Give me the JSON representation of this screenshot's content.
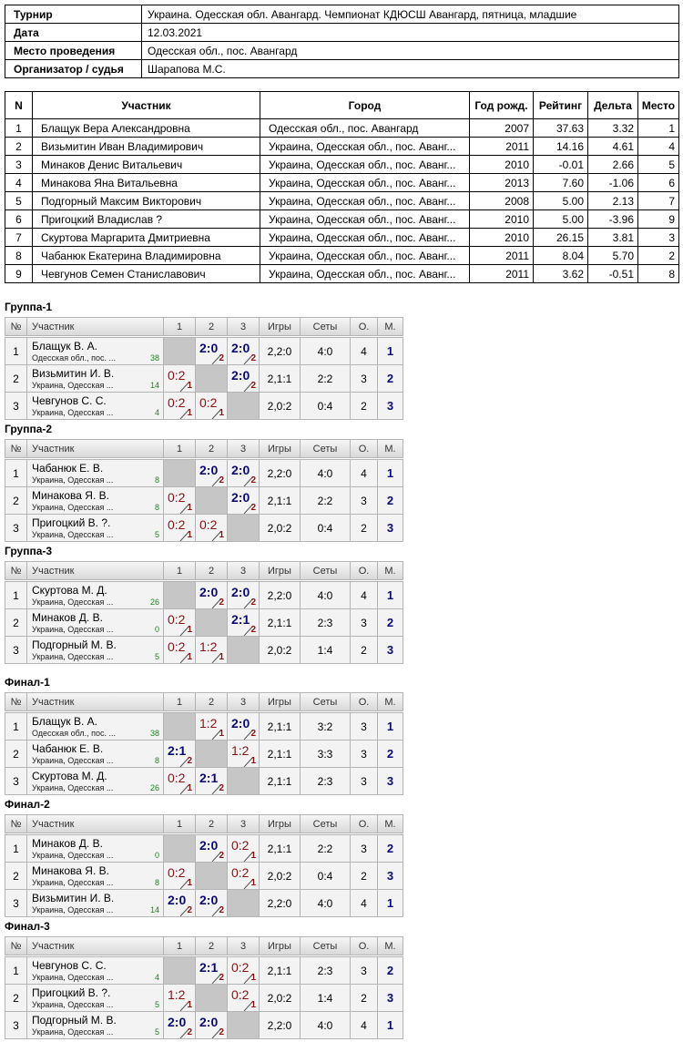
{
  "info": {
    "rows": [
      [
        "Турнир",
        "Украина. Одесская обл. Авангард. Чемпионат КДЮСШ Авангард, пятница, младшие"
      ],
      [
        "Дата",
        "12.03.2021"
      ],
      [
        "Место проведения",
        "Одесская обл., пос. Авангард"
      ],
      [
        "Организатор / судья",
        "Шарапова М.С."
      ]
    ]
  },
  "participants": {
    "header": [
      "N",
      "Участник",
      "Город",
      "Год рожд.",
      "Рейтинг",
      "Дельта",
      "Место"
    ],
    "rows": [
      [
        "1",
        "Блащук Вера Александровна",
        "Одесская обл., пос. Авангард",
        "2007",
        "37.63",
        "3.32",
        "1"
      ],
      [
        "2",
        "Визьмитин Иван Владимирович",
        "Украина, Одесская обл., пос. Аванг...",
        "2011",
        "14.16",
        "4.61",
        "4"
      ],
      [
        "3",
        "Минаков Денис Витальевич",
        "Украина, Одесская обл., пос. Аванг...",
        "2010",
        "-0.01",
        "2.66",
        "5"
      ],
      [
        "4",
        "Минакова Яна Витальевна",
        "Украина, Одесская обл., пос. Аванг...",
        "2013",
        "7.60",
        "-1.06",
        "6"
      ],
      [
        "5",
        "Подгорный Максим Викторович",
        "Украина, Одесская обл., пос. Аванг...",
        "2008",
        "5.00",
        "2.13",
        "7"
      ],
      [
        "6",
        "Пригоцкий Владислав ?",
        "Украина, Одесская обл., пос. Аванг...",
        "2010",
        "5.00",
        "-3.96",
        "9"
      ],
      [
        "7",
        "Скуртова Маргарита Дмитриевна",
        "Украина, Одесская обл., пос. Аванг...",
        "2010",
        "26.15",
        "3.81",
        "3"
      ],
      [
        "8",
        "Чабанюк Екатерина Владимировна",
        "Украина, Одесская обл., пос. Аванг...",
        "2011",
        "8.04",
        "5.70",
        "2"
      ],
      [
        "9",
        "Чевгунов Семен Станиславович",
        "Украина, Одесская обл., пос. Аванг...",
        "2011",
        "3.62",
        "-0.51",
        "8"
      ]
    ]
  },
  "group_header": [
    "№",
    "Участник",
    "1",
    "2",
    "3",
    "Игры",
    "Сеты",
    "О.",
    "М."
  ],
  "groups": [
    {
      "title": "Группа-1",
      "rows": [
        {
          "n": "1",
          "name": "Блащук В. А.",
          "city": "Одесская обл., пос. ...",
          "rating": "38",
          "results": [
            null,
            {
              "score": "2:0",
              "points": "2"
            },
            {
              "score": "2:0",
              "points": "2"
            }
          ],
          "games": "2,2:0",
          "sets": "4:0",
          "points": "4",
          "place": "1"
        },
        {
          "n": "2",
          "name": "Визьмитин И. В.",
          "city": "Украина, Одесская ...",
          "rating": "14",
          "results": [
            {
              "score": "0:2",
              "points": "1"
            },
            null,
            {
              "score": "2:0",
              "points": "2"
            }
          ],
          "games": "2,1:1",
          "sets": "2:2",
          "points": "3",
          "place": "2"
        },
        {
          "n": "3",
          "name": "Чевгунов С. С.",
          "city": "Украина, Одесская ...",
          "rating": "4",
          "results": [
            {
              "score": "0:2",
              "points": "1"
            },
            {
              "score": "0:2",
              "points": "1"
            },
            null
          ],
          "games": "2,0:2",
          "sets": "0:4",
          "points": "2",
          "place": "3"
        }
      ]
    },
    {
      "title": "Группа-2",
      "rows": [
        {
          "n": "1",
          "name": "Чабанюк Е. В.",
          "city": "Украина, Одесская ...",
          "rating": "8",
          "results": [
            null,
            {
              "score": "2:0",
              "points": "2"
            },
            {
              "score": "2:0",
              "points": "2"
            }
          ],
          "games": "2,2:0",
          "sets": "4:0",
          "points": "4",
          "place": "1"
        },
        {
          "n": "2",
          "name": "Минакова Я. В.",
          "city": "Украина, Одесская ...",
          "rating": "8",
          "results": [
            {
              "score": "0:2",
              "points": "1"
            },
            null,
            {
              "score": "2:0",
              "points": "2"
            }
          ],
          "games": "2,1:1",
          "sets": "2:2",
          "points": "3",
          "place": "2"
        },
        {
          "n": "3",
          "name": "Пригоцкий В. ?.",
          "city": "Украина, Одесская ...",
          "rating": "5",
          "results": [
            {
              "score": "0:2",
              "points": "1"
            },
            {
              "score": "0:2",
              "points": "1"
            },
            null
          ],
          "games": "2,0:2",
          "sets": "0:4",
          "points": "2",
          "place": "3"
        }
      ]
    },
    {
      "title": "Группа-3",
      "rows": [
        {
          "n": "1",
          "name": "Скуртова М. Д.",
          "city": "Украина, Одесская ...",
          "rating": "26",
          "results": [
            null,
            {
              "score": "2:0",
              "points": "2"
            },
            {
              "score": "2:0",
              "points": "2"
            }
          ],
          "games": "2,2:0",
          "sets": "4:0",
          "points": "4",
          "place": "1"
        },
        {
          "n": "2",
          "name": "Минаков Д. В.",
          "city": "Украина, Одесская ...",
          "rating": "0",
          "results": [
            {
              "score": "0:2",
              "points": "1"
            },
            null,
            {
              "score": "2:1",
              "points": "2"
            }
          ],
          "games": "2,1:1",
          "sets": "2:3",
          "points": "3",
          "place": "2"
        },
        {
          "n": "3",
          "name": "Подгорный М. В.",
          "city": "Украина, Одесская ...",
          "rating": "5",
          "results": [
            {
              "score": "0:2",
              "points": "1"
            },
            {
              "score": "1:2",
              "points": "1"
            },
            null
          ],
          "games": "2,0:2",
          "sets": "1:4",
          "points": "2",
          "place": "3"
        }
      ]
    },
    {
      "title": "Финал-1",
      "rows": [
        {
          "n": "1",
          "name": "Блащук В. А.",
          "city": "Одесская обл., пос. ...",
          "rating": "38",
          "results": [
            null,
            {
              "score": "1:2",
              "points": "1"
            },
            {
              "score": "2:0",
              "points": "2"
            }
          ],
          "games": "2,1:1",
          "sets": "3:2",
          "points": "3",
          "place": "1"
        },
        {
          "n": "2",
          "name": "Чабанюк Е. В.",
          "city": "Украина, Одесская ...",
          "rating": "8",
          "results": [
            {
              "score": "2:1",
              "points": "2"
            },
            null,
            {
              "score": "1:2",
              "points": "1"
            }
          ],
          "games": "2,1:1",
          "sets": "3:3",
          "points": "3",
          "place": "2"
        },
        {
          "n": "3",
          "name": "Скуртова М. Д.",
          "city": "Украина, Одесская ...",
          "rating": "26",
          "results": [
            {
              "score": "0:2",
              "points": "1"
            },
            {
              "score": "2:1",
              "points": "2"
            },
            null
          ],
          "games": "2,1:1",
          "sets": "2:3",
          "points": "3",
          "place": "3"
        }
      ]
    },
    {
      "title": "Финал-2",
      "rows": [
        {
          "n": "1",
          "name": "Минаков Д. В.",
          "city": "Украина, Одесская ...",
          "rating": "0",
          "results": [
            null,
            {
              "score": "2:0",
              "points": "2"
            },
            {
              "score": "0:2",
              "points": "1"
            }
          ],
          "games": "2,1:1",
          "sets": "2:2",
          "points": "3",
          "place": "2"
        },
        {
          "n": "2",
          "name": "Минакова Я. В.",
          "city": "Украина, Одесская ...",
          "rating": "8",
          "results": [
            {
              "score": "0:2",
              "points": "1"
            },
            null,
            {
              "score": "0:2",
              "points": "1"
            }
          ],
          "games": "2,0:2",
          "sets": "0:4",
          "points": "2",
          "place": "3"
        },
        {
          "n": "3",
          "name": "Визьмитин И. В.",
          "city": "Украина, Одесская ...",
          "rating": "14",
          "results": [
            {
              "score": "2:0",
              "points": "2"
            },
            {
              "score": "2:0",
              "points": "2"
            },
            null
          ],
          "games": "2,2:0",
          "sets": "4:0",
          "points": "4",
          "place": "1"
        }
      ]
    },
    {
      "title": "Финал-3",
      "rows": [
        {
          "n": "1",
          "name": "Чевгунов С. С.",
          "city": "Украина, Одесская ...",
          "rating": "4",
          "results": [
            null,
            {
              "score": "2:1",
              "points": "2"
            },
            {
              "score": "0:2",
              "points": "1"
            }
          ],
          "games": "2,1:1",
          "sets": "2:3",
          "points": "3",
          "place": "2"
        },
        {
          "n": "2",
          "name": "Пригоцкий В. ?.",
          "city": "Украина, Одесская ...",
          "rating": "5",
          "results": [
            {
              "score": "1:2",
              "points": "1"
            },
            null,
            {
              "score": "0:2",
              "points": "1"
            }
          ],
          "games": "2,0:2",
          "sets": "1:4",
          "points": "2",
          "place": "3"
        },
        {
          "n": "3",
          "name": "Подгорный М. В.",
          "city": "Украина, Одесская ...",
          "rating": "5",
          "results": [
            {
              "score": "2:0",
              "points": "2"
            },
            {
              "score": "2:0",
              "points": "2"
            },
            null
          ],
          "games": "2,2:0",
          "sets": "4:0",
          "points": "4",
          "place": "1"
        }
      ]
    }
  ]
}
